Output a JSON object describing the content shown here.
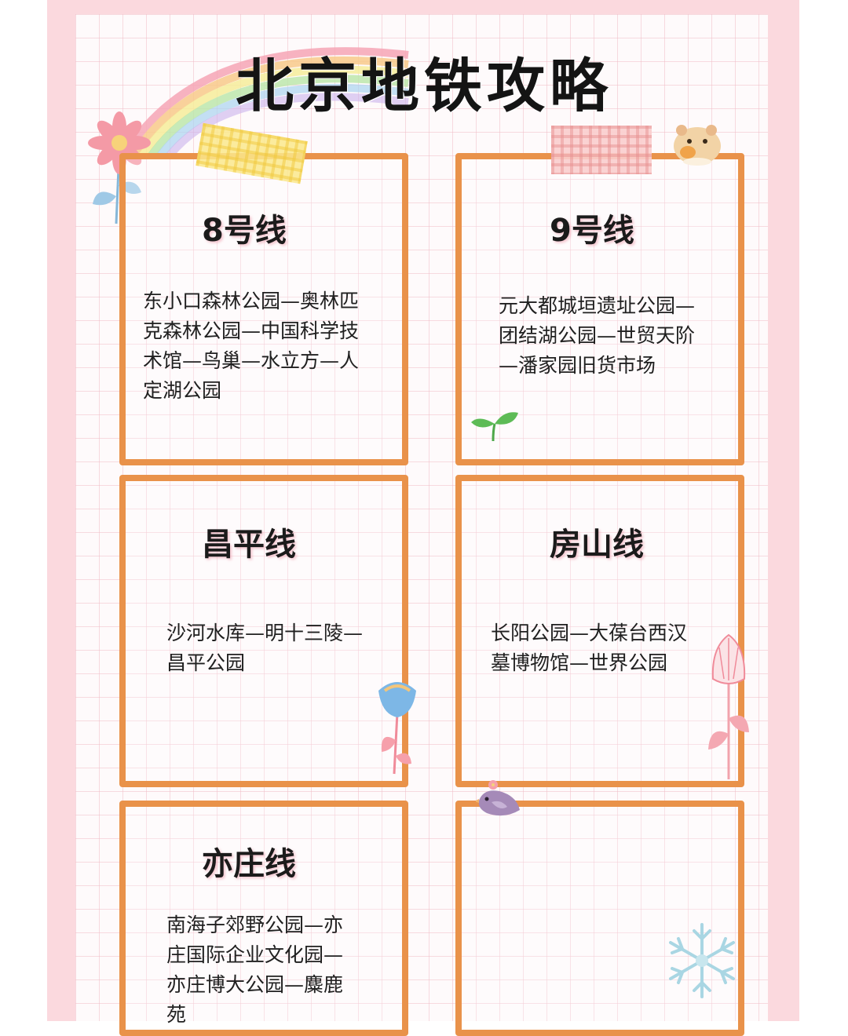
{
  "title": "北京地铁攻略",
  "cards": [
    {
      "title": "8号线",
      "lines": [
        "东小口森林公园—奥林匹",
        "克森林公园—中国科学技",
        "术馆—鸟巢—水立方—人",
        "定湖公园"
      ]
    },
    {
      "title": "9号线",
      "lines": [
        "元大都城垣遗址公园—",
        "团结湖公园—世贸天阶",
        "—潘家园旧货市场"
      ]
    },
    {
      "title": "昌平线",
      "lines": [
        "沙河水库—明十三陵—",
        "昌平公园"
      ]
    },
    {
      "title": "房山线",
      "lines": [
        "长阳公园—大葆台西汉",
        "墓博物馆—世界公园"
      ]
    },
    {
      "title": "亦庄线",
      "lines": [
        "南海子郊野公园—亦",
        "庄国际企业文化园—",
        "亦庄博大公园—麋鹿",
        "苑"
      ]
    }
  ],
  "colors": {
    "card_border": "#e9924a",
    "background_pink": "#fbd9de",
    "grid_line": "#f0bec8"
  },
  "icons": [
    "rainbow-icon",
    "pink-flower-icon",
    "yellow-tape-icon",
    "pink-tape-icon",
    "hamster-icon",
    "sprout-icon",
    "blue-flower-icon",
    "lily-flower-icon",
    "bird-icon",
    "snowflake-icon"
  ]
}
